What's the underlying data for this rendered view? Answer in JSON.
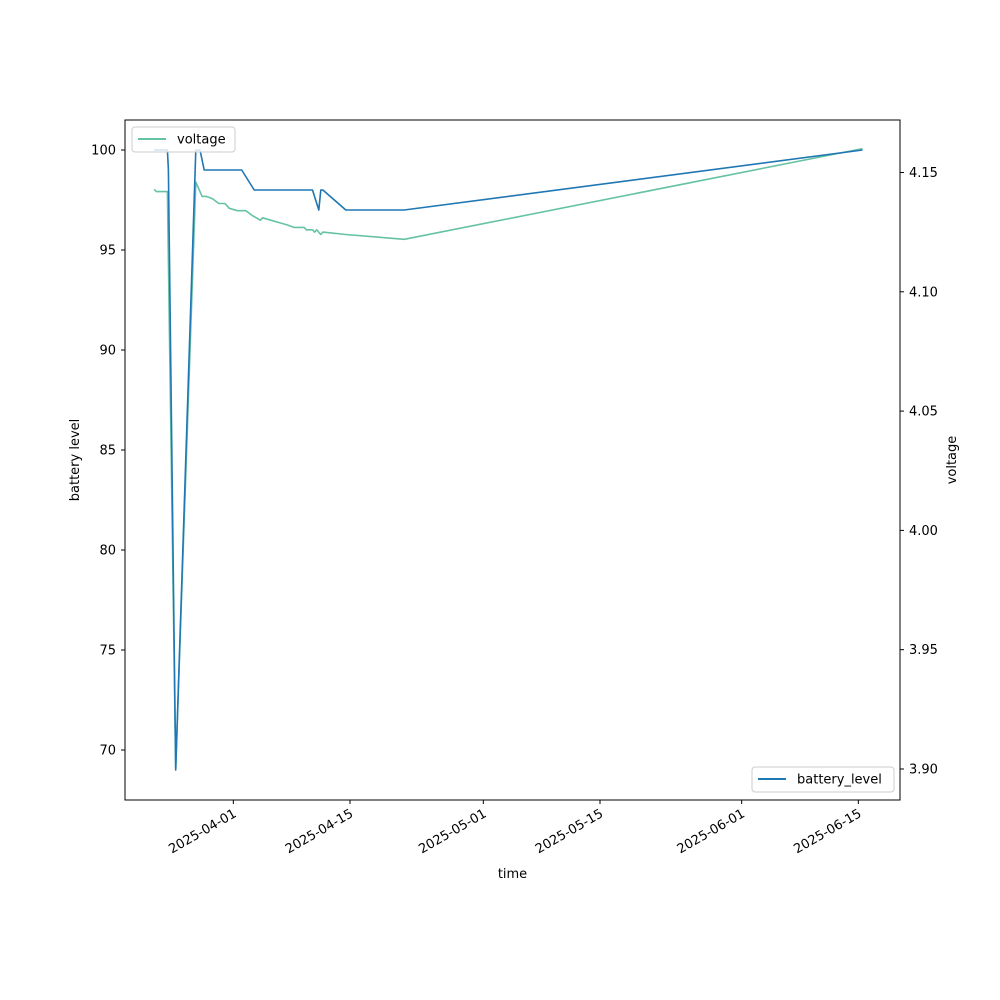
{
  "chart_data": {
    "type": "line",
    "title": "",
    "xlabel": "time",
    "ylabel_left": "battery level",
    "ylabel_right": "voltage",
    "x_range": [
      "2025-03-19",
      "2025-06-20"
    ],
    "ylim_left": [
      67.5,
      101.5
    ],
    "ylim_right": [
      3.887,
      4.172
    ],
    "x_ticks": [
      "2025-04-01",
      "2025-04-15",
      "2025-05-01",
      "2025-05-15",
      "2025-06-01",
      "2025-06-15"
    ],
    "y_ticks_left": [
      70,
      75,
      80,
      85,
      90,
      95,
      100
    ],
    "y_ticks_right": [
      3.9,
      3.95,
      4.0,
      4.05,
      4.1,
      4.15
    ],
    "y_tick_labels_right": [
      "3.90",
      "3.95",
      "4.00",
      "4.05",
      "4.10",
      "4.15"
    ],
    "grid": false,
    "series": [
      {
        "name": "battery_level",
        "axis": "left",
        "color": "#1f77b4",
        "legend_position": "lower-right",
        "points": [
          [
            "2025-03-22T12:00",
            100
          ],
          [
            "2025-03-24T02:00",
            100
          ],
          [
            "2025-03-24T05:00",
            99
          ],
          [
            "2025-03-25T02:00",
            69
          ],
          [
            "2025-03-27T12:00",
            100
          ],
          [
            "2025-03-28T00:00",
            100
          ],
          [
            "2025-03-28T12:00",
            99
          ],
          [
            "2025-04-02T00:00",
            99
          ],
          [
            "2025-04-03T12:00",
            98
          ],
          [
            "2025-04-10T12:00",
            98
          ],
          [
            "2025-04-11T06:00",
            97
          ],
          [
            "2025-04-11T12:00",
            98
          ],
          [
            "2025-04-11T18:00",
            98
          ],
          [
            "2025-04-14T12:00",
            97
          ],
          [
            "2025-04-21T12:00",
            97
          ],
          [
            "2025-06-15T12:00",
            100
          ]
        ]
      },
      {
        "name": "voltage",
        "axis": "right",
        "color": "#66c2a5",
        "legend_position": "upper-left",
        "points": [
          [
            "2025-03-22T12:00",
            4.143
          ],
          [
            "2025-03-22T18:00",
            4.142
          ],
          [
            "2025-03-24T02:00",
            4.142
          ],
          [
            "2025-03-25T02:00",
            3.9
          ],
          [
            "2025-03-27T12:00",
            4.146
          ],
          [
            "2025-03-28T06:00",
            4.14
          ],
          [
            "2025-03-28T18:00",
            4.14
          ],
          [
            "2025-03-29T12:00",
            4.139
          ],
          [
            "2025-03-30T06:00",
            4.137
          ],
          [
            "2025-03-31T00:00",
            4.137
          ],
          [
            "2025-03-31T12:00",
            4.135
          ],
          [
            "2025-04-01T12:00",
            4.134
          ],
          [
            "2025-04-02T12:00",
            4.134
          ],
          [
            "2025-04-03T06:00",
            4.132
          ],
          [
            "2025-04-03T18:00",
            4.131
          ],
          [
            "2025-04-04T06:00",
            4.13
          ],
          [
            "2025-04-04T12:00",
            4.131
          ],
          [
            "2025-04-05T12:00",
            4.13
          ],
          [
            "2025-04-06T12:00",
            4.129
          ],
          [
            "2025-04-07T12:00",
            4.128
          ],
          [
            "2025-04-08T06:00",
            4.127
          ],
          [
            "2025-04-09T12:00",
            4.127
          ],
          [
            "2025-04-09T18:00",
            4.126
          ],
          [
            "2025-04-10T06:00",
            4.126
          ],
          [
            "2025-04-10T12:00",
            4.126
          ],
          [
            "2025-04-10T18:00",
            4.125
          ],
          [
            "2025-04-11T00:00",
            4.126
          ],
          [
            "2025-04-11T12:00",
            4.124
          ],
          [
            "2025-04-11T18:00",
            4.125
          ],
          [
            "2025-04-14T12:00",
            4.124
          ],
          [
            "2025-04-21T12:00",
            4.122
          ],
          [
            "2025-06-15T12:00",
            4.16
          ]
        ]
      }
    ]
  }
}
